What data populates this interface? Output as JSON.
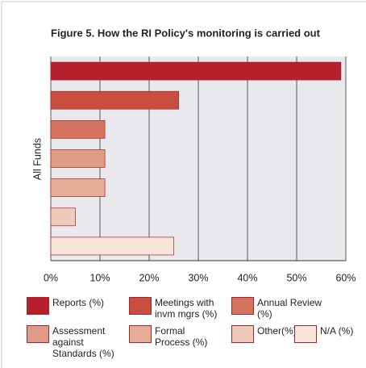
{
  "chart_data": {
    "type": "hbar",
    "title": "Figure 5. How the RI Policy's monitoring is carried out",
    "categories": [
      "All Funds"
    ],
    "series": [
      {
        "name": "Reports (%)",
        "color": "#b61f2c",
        "values": [
          59
        ]
      },
      {
        "name": "Meetings with invm mgrs (%)",
        "color": "#c84e3e",
        "values": [
          26
        ]
      },
      {
        "name": "Annual Review (%)",
        "color": "#d4735e",
        "values": [
          11
        ]
      },
      {
        "name": "Assessment against Standards (%)",
        "color": "#de9b85",
        "values": [
          11
        ]
      },
      {
        "name": "Formal Process (%)",
        "color": "#e5ad98",
        "values": [
          11
        ]
      },
      {
        "name": "Other(%)",
        "color": "#f0cbbb",
        "values": [
          5
        ]
      },
      {
        "name": "N/A (%)",
        "color": "#f9e4da",
        "values": [
          25
        ]
      }
    ],
    "xlim": [
      0,
      60
    ],
    "xticks": [
      {
        "value": 0,
        "label": "0%"
      },
      {
        "value": 10,
        "label": "10%"
      },
      {
        "value": 20,
        "label": "20%"
      },
      {
        "value": 30,
        "label": "30%"
      },
      {
        "value": 40,
        "label": "40%"
      },
      {
        "value": 50,
        "label": "50%"
      },
      {
        "value": 60,
        "label": "60%"
      }
    ],
    "grid": true
  }
}
